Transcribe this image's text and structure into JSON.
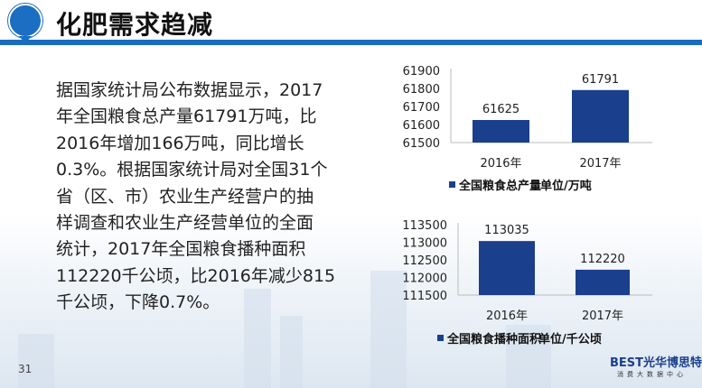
{
  "header": {
    "title": "化肥需求趋减",
    "logo_icon": "farm-tractor-pin-icon"
  },
  "body_lines": [
    "据国家统计局公布数据显示，2017",
    "年全国粮食总产量61791万吨，比",
    "2016年增加166万吨，同比增长",
    "0.3%。根据国家统计局对全国31个",
    "省（区、市）农业生产经营户的抽",
    "样调查和农业生产经营单位的全面",
    "统计，2017年全国粮食播种面积",
    "112220千公顷，比2016年减少815",
    "千公顷，下降0.7%。"
  ],
  "footer": {
    "page_number": "31",
    "brand_logo_text": "BEST光华博思特",
    "brand_subtitle": "消费大数据中心"
  },
  "colors": {
    "bar": "#1a3f8c",
    "rule": "#1a6cc0"
  },
  "chart_data": [
    {
      "type": "bar",
      "categories": [
        "2016年",
        "2017年"
      ],
      "values": [
        61625,
        61791
      ],
      "data_labels": [
        "61625",
        "61791"
      ],
      "yticks": [
        "61500",
        "61600",
        "61700",
        "61800",
        "61900"
      ],
      "ylim": [
        61500,
        61900
      ],
      "legend": "全国粮食总产量",
      "unit": "单位/万吨",
      "legend_position": "bottom",
      "grid": false
    },
    {
      "type": "bar",
      "categories": [
        "2016年",
        "2017年"
      ],
      "values": [
        113035,
        112220
      ],
      "data_labels": [
        "113035",
        "112220"
      ],
      "yticks": [
        "111500",
        "112000",
        "112500",
        "113000",
        "113500"
      ],
      "ylim": [
        111500,
        113500
      ],
      "legend": "全国粮食播种面积",
      "unit": "单位/千公顷",
      "legend_position": "bottom",
      "grid": false
    }
  ]
}
